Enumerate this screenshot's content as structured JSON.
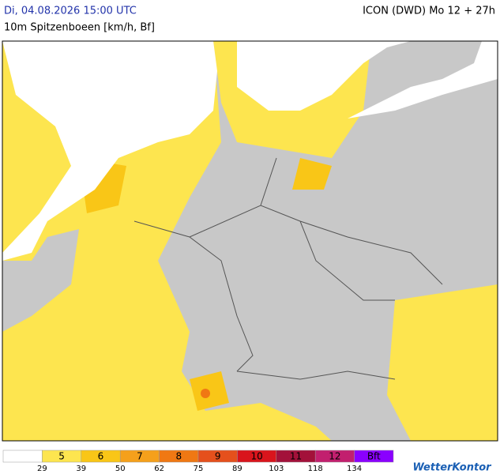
{
  "header": {
    "date": "Di, 04.08.2026 15:00 UTC",
    "parameter": "10m Spitzenboeen [km/h, Bf]",
    "model": "ICON (DWD) Mo 12 + 27h"
  },
  "legend": {
    "classes": [
      {
        "color": "#ffffff"
      },
      {
        "label": "5",
        "color": "#fde54f"
      },
      {
        "label": "6",
        "color": "#f9c617"
      },
      {
        "label": "7",
        "color": "#f5a01b"
      },
      {
        "label": "8",
        "color": "#f07813"
      },
      {
        "label": "9",
        "color": "#e5501c"
      },
      {
        "label": "10",
        "color": "#d9141c"
      },
      {
        "label": "11",
        "color": "#a3113a"
      },
      {
        "label": "12",
        "color": "#c21f6e"
      },
      {
        "label": "Bft",
        "color": "#8a00ff"
      }
    ],
    "thresholds": [
      "29",
      "39",
      "50",
      "62",
      "75",
      "89",
      "103",
      "118",
      "134"
    ]
  },
  "brand": "WetterKontor"
}
